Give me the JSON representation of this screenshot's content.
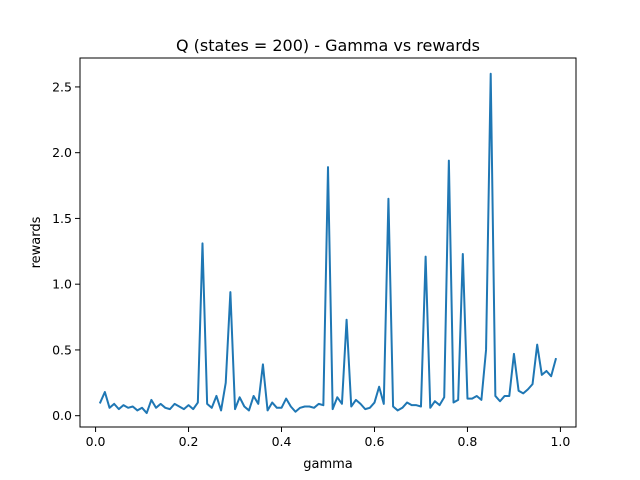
{
  "chart_data": {
    "type": "line",
    "title": "Q (states = 200) - Gamma vs rewards",
    "xlabel": "gamma",
    "ylabel": "rewards",
    "xlim": [
      -0.0335,
      1.0335
    ],
    "ylim": [
      -0.086,
      2.72
    ],
    "xticks": [
      {
        "value": 0.0,
        "label": "0.0"
      },
      {
        "value": 0.2,
        "label": "0.2"
      },
      {
        "value": 0.4,
        "label": "0.4"
      },
      {
        "value": 0.6,
        "label": "0.6"
      },
      {
        "value": 0.8,
        "label": "0.8"
      },
      {
        "value": 1.0,
        "label": "1.0"
      }
    ],
    "yticks": [
      {
        "value": 0.0,
        "label": "0.0"
      },
      {
        "value": 0.5,
        "label": "0.5"
      },
      {
        "value": 1.0,
        "label": "1.0"
      },
      {
        "value": 1.5,
        "label": "1.5"
      },
      {
        "value": 2.0,
        "label": "2.0"
      },
      {
        "value": 2.5,
        "label": "2.5"
      }
    ],
    "grid": false,
    "series": [
      {
        "color": "#1f77b4",
        "x": [
          0.01,
          0.02,
          0.03,
          0.04,
          0.05,
          0.06,
          0.07,
          0.08,
          0.09,
          0.1,
          0.11,
          0.12,
          0.13,
          0.14,
          0.15,
          0.16,
          0.17,
          0.18,
          0.19,
          0.2,
          0.21,
          0.22,
          0.23,
          0.24,
          0.25,
          0.26,
          0.27,
          0.28,
          0.29,
          0.3,
          0.31,
          0.32,
          0.33,
          0.34,
          0.35,
          0.36,
          0.37,
          0.38,
          0.39,
          0.4,
          0.41,
          0.42,
          0.43,
          0.44,
          0.45,
          0.46,
          0.47,
          0.48,
          0.49,
          0.5,
          0.51,
          0.52,
          0.53,
          0.54,
          0.55,
          0.56,
          0.57,
          0.58,
          0.59,
          0.6,
          0.61,
          0.62,
          0.63,
          0.64,
          0.65,
          0.66,
          0.67,
          0.68,
          0.69,
          0.7,
          0.71,
          0.72,
          0.73,
          0.74,
          0.75,
          0.76,
          0.77,
          0.78,
          0.79,
          0.8,
          0.81,
          0.82,
          0.83,
          0.84,
          0.85,
          0.86,
          0.87,
          0.88,
          0.89,
          0.9,
          0.91,
          0.92,
          0.93,
          0.94,
          0.95,
          0.96,
          0.97,
          0.98,
          0.99
        ],
        "y": [
          0.1,
          0.18,
          0.06,
          0.09,
          0.05,
          0.08,
          0.06,
          0.07,
          0.04,
          0.06,
          0.02,
          0.12,
          0.06,
          0.09,
          0.06,
          0.05,
          0.09,
          0.07,
          0.05,
          0.08,
          0.05,
          0.1,
          1.31,
          0.09,
          0.06,
          0.15,
          0.04,
          0.25,
          0.94,
          0.05,
          0.14,
          0.07,
          0.04,
          0.15,
          0.09,
          0.39,
          0.04,
          0.1,
          0.06,
          0.06,
          0.13,
          0.07,
          0.03,
          0.06,
          0.07,
          0.07,
          0.06,
          0.09,
          0.08,
          1.89,
          0.05,
          0.14,
          0.09,
          0.73,
          0.07,
          0.12,
          0.09,
          0.05,
          0.06,
          0.1,
          0.22,
          0.09,
          1.65,
          0.07,
          0.04,
          0.06,
          0.1,
          0.08,
          0.08,
          0.07,
          1.21,
          0.06,
          0.11,
          0.08,
          0.14,
          1.94,
          0.1,
          0.12,
          1.23,
          0.13,
          0.13,
          0.15,
          0.12,
          0.5,
          2.6,
          0.15,
          0.11,
          0.15,
          0.15,
          0.47,
          0.19,
          0.17,
          0.2,
          0.24,
          0.54,
          0.31,
          0.34,
          0.3,
          0.43
        ]
      }
    ]
  }
}
